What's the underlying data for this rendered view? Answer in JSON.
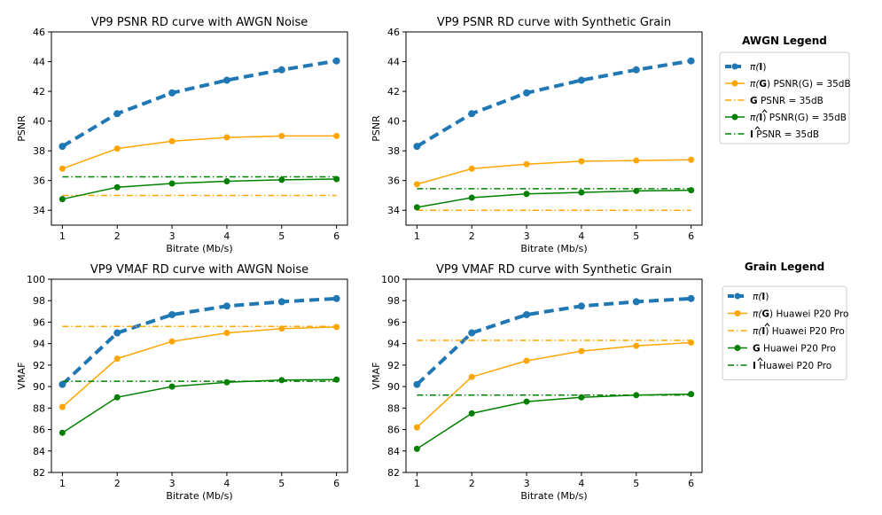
{
  "chart_data": [
    {
      "type": "line",
      "title": "VP9 PSNR RD curve with AWGN Noise",
      "xlabel": "Bitrate (Mb/s)",
      "ylabel": "PSNR",
      "xlim": [
        0.8,
        6.2
      ],
      "ylim": [
        33,
        46
      ],
      "xticks": [
        1,
        2,
        3,
        4,
        5,
        6
      ],
      "yticks": [
        34,
        36,
        38,
        40,
        42,
        44,
        46
      ],
      "x": [
        1,
        2,
        3,
        4,
        5,
        6
      ],
      "series": [
        {
          "values": [
            38.3,
            40.5,
            41.9,
            42.75,
            43.45,
            44.05
          ],
          "color": "#1f77b4",
          "style": "dashed-thick",
          "marker": true
        },
        {
          "values": [
            36.8,
            38.15,
            38.65,
            38.9,
            39.0,
            39.0
          ],
          "color": "#ffa500",
          "style": "solid",
          "marker": true
        },
        {
          "values": [
            35.0,
            35.0
          ],
          "x": [
            1,
            6
          ],
          "color": "#ffa500",
          "style": "dashdot",
          "marker": false
        },
        {
          "values": [
            34.75,
            35.55,
            35.8,
            35.95,
            36.05,
            36.1
          ],
          "color": "#008000",
          "style": "solid",
          "marker": true
        },
        {
          "values": [
            36.25,
            36.25
          ],
          "x": [
            1,
            6
          ],
          "color": "#008000",
          "style": "dashdot",
          "marker": false
        }
      ]
    },
    {
      "type": "line",
      "title": "VP9 PSNR RD curve with Synthetic Grain",
      "xlabel": "Bitrate (Mb/s)",
      "ylabel": "PSNR",
      "xlim": [
        0.8,
        6.2
      ],
      "ylim": [
        33,
        46
      ],
      "xticks": [
        1,
        2,
        3,
        4,
        5,
        6
      ],
      "yticks": [
        34,
        36,
        38,
        40,
        42,
        44,
        46
      ],
      "x": [
        1,
        2,
        3,
        4,
        5,
        6
      ],
      "series": [
        {
          "values": [
            38.3,
            40.5,
            41.9,
            42.75,
            43.45,
            44.05
          ],
          "color": "#1f77b4",
          "style": "dashed-thick",
          "marker": true
        },
        {
          "values": [
            35.75,
            36.8,
            37.1,
            37.3,
            37.35,
            37.4
          ],
          "color": "#ffa500",
          "style": "solid",
          "marker": true
        },
        {
          "values": [
            34.0,
            34.0
          ],
          "x": [
            1,
            6
          ],
          "color": "#ffa500",
          "style": "dashdot",
          "marker": false
        },
        {
          "values": [
            34.2,
            34.85,
            35.1,
            35.2,
            35.3,
            35.35
          ],
          "color": "#008000",
          "style": "solid",
          "marker": true
        },
        {
          "values": [
            35.45,
            35.45
          ],
          "x": [
            1,
            6
          ],
          "color": "#008000",
          "style": "dashdot",
          "marker": false
        }
      ]
    },
    {
      "type": "line",
      "title": "VP9 VMAF RD curve with AWGN Noise",
      "xlabel": "Bitrate (Mb/s)",
      "ylabel": "VMAF",
      "xlim": [
        0.8,
        6.2
      ],
      "ylim": [
        82,
        100
      ],
      "xticks": [
        1,
        2,
        3,
        4,
        5,
        6
      ],
      "yticks": [
        82,
        84,
        86,
        88,
        90,
        92,
        94,
        96,
        98,
        100
      ],
      "x": [
        1,
        2,
        3,
        4,
        5,
        6
      ],
      "series": [
        {
          "values": [
            90.2,
            95.0,
            96.7,
            97.5,
            97.9,
            98.2
          ],
          "color": "#1f77b4",
          "style": "dashed-thick",
          "marker": true
        },
        {
          "values": [
            88.1,
            92.6,
            94.2,
            95.0,
            95.4,
            95.55
          ],
          "color": "#ffa500",
          "style": "solid",
          "marker": true
        },
        {
          "values": [
            95.6,
            95.6
          ],
          "x": [
            1,
            6
          ],
          "color": "#ffa500",
          "style": "dashdot",
          "marker": false
        },
        {
          "values": [
            85.7,
            89.0,
            90.0,
            90.4,
            90.6,
            90.65
          ],
          "color": "#008000",
          "style": "solid",
          "marker": true
        },
        {
          "values": [
            90.5,
            90.5
          ],
          "x": [
            1,
            6
          ],
          "color": "#008000",
          "style": "dashdot",
          "marker": false
        }
      ]
    },
    {
      "type": "line",
      "title": "VP9 VMAF RD curve with Synthetic Grain",
      "xlabel": "Bitrate (Mb/s)",
      "ylabel": "VMAF",
      "xlim": [
        0.8,
        6.2
      ],
      "ylim": [
        82,
        100
      ],
      "xticks": [
        1,
        2,
        3,
        4,
        5,
        6
      ],
      "yticks": [
        82,
        84,
        86,
        88,
        90,
        92,
        94,
        96,
        98,
        100
      ],
      "x": [
        1,
        2,
        3,
        4,
        5,
        6
      ],
      "series": [
        {
          "values": [
            90.2,
            95.0,
            96.7,
            97.5,
            97.9,
            98.2
          ],
          "color": "#1f77b4",
          "style": "dashed-thick",
          "marker": true
        },
        {
          "values": [
            86.2,
            90.9,
            92.4,
            93.3,
            93.8,
            94.1
          ],
          "color": "#ffa500",
          "style": "solid",
          "marker": true
        },
        {
          "values": [
            94.3,
            94.3
          ],
          "x": [
            1,
            6
          ],
          "color": "#ffa500",
          "style": "dashdot",
          "marker": false
        },
        {
          "values": [
            84.2,
            87.5,
            88.6,
            89.0,
            89.2,
            89.3
          ],
          "color": "#008000",
          "style": "solid",
          "marker": true
        },
        {
          "values": [
            89.2,
            89.2
          ],
          "x": [
            1,
            6
          ],
          "color": "#008000",
          "style": "dashdot",
          "marker": false
        }
      ]
    }
  ],
  "legends": [
    {
      "title": "AWGN Legend",
      "entries": [
        {
          "style": "dashed-thick",
          "marker": true,
          "color": "#1f77b4",
          "sym": "π(",
          "bold": "I",
          "hat": false,
          "close": ")",
          "text": ""
        },
        {
          "style": "solid",
          "marker": true,
          "color": "#ffa500",
          "sym": "π(",
          "bold": "G",
          "hat": false,
          "close": ")",
          "text": "PSNR(G) = 35dB"
        },
        {
          "style": "dashdot",
          "marker": false,
          "color": "#ffa500",
          "sym": "",
          "bold": "G",
          "hat": false,
          "close": "",
          "text": "PSNR      = 35dB"
        },
        {
          "style": "solid",
          "marker": true,
          "color": "#008000",
          "sym": "π(",
          "bold": "I",
          "hat": true,
          "close": ")",
          "text": "PSNR(G) = 35dB"
        },
        {
          "style": "dashdot",
          "marker": false,
          "color": "#008000",
          "sym": "",
          "bold": "I",
          "hat": true,
          "close": "",
          "text": "PSNR      = 35dB"
        }
      ]
    },
    {
      "title": "Grain Legend",
      "entries": [
        {
          "style": "dashed-thick",
          "marker": true,
          "color": "#1f77b4",
          "sym": "π(",
          "bold": "I",
          "hat": false,
          "close": ")",
          "text": ""
        },
        {
          "style": "solid",
          "marker": true,
          "color": "#ffa500",
          "sym": "π(",
          "bold": "G",
          "hat": false,
          "close": ")",
          "text": "Huawei P20 Pro"
        },
        {
          "style": "dashdot",
          "marker": false,
          "color": "#ffa500",
          "sym": "π(",
          "bold": "I",
          "hat": true,
          "close": ")",
          "text": "Huawei P20 Pro"
        },
        {
          "style": "solid",
          "marker": true,
          "color": "#008000",
          "sym": "",
          "bold": "G",
          "hat": false,
          "close": "",
          "text": "Huawei P20 Pro"
        },
        {
          "style": "dashdot",
          "marker": false,
          "color": "#008000",
          "sym": "",
          "bold": "I",
          "hat": true,
          "close": "",
          "text": "Huawei P20 Pro"
        }
      ]
    }
  ]
}
